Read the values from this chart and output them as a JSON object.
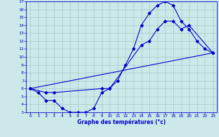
{
  "xlabel": "Graphe des températures (°c)",
  "background_color": "#cce8e8",
  "grid_color": "#aacece",
  "line_color": "#0000cc",
  "xlim": [
    -0.5,
    23.5
  ],
  "ylim": [
    3,
    17
  ],
  "xticks": [
    0,
    1,
    2,
    3,
    4,
    5,
    6,
    7,
    8,
    9,
    10,
    11,
    12,
    13,
    14,
    15,
    16,
    17,
    18,
    19,
    20,
    21,
    22,
    23
  ],
  "yticks": [
    3,
    4,
    5,
    6,
    7,
    8,
    9,
    10,
    11,
    12,
    13,
    14,
    15,
    16,
    17
  ],
  "curve1_x": [
    0,
    1,
    2,
    3,
    4,
    5,
    6,
    7,
    8,
    9,
    10,
    11,
    12,
    13,
    14,
    15,
    16,
    17,
    18,
    19,
    20,
    21,
    22,
    23
  ],
  "curve1_y": [
    6.0,
    5.5,
    4.5,
    4.5,
    3.5,
    3.0,
    3.0,
    3.0,
    3.5,
    5.5,
    6.0,
    7.0,
    9.0,
    11.0,
    14.0,
    15.5,
    16.5,
    17.0,
    16.5,
    14.5,
    13.5,
    12.0,
    11.0,
    10.5
  ],
  "curve2_x": [
    0,
    2,
    3,
    9,
    10,
    14,
    15,
    16,
    17,
    18,
    19,
    20,
    23
  ],
  "curve2_y": [
    6.0,
    5.5,
    5.5,
    6.0,
    6.0,
    11.5,
    12.0,
    13.5,
    14.5,
    14.5,
    13.5,
    14.0,
    10.5
  ],
  "curve3_x": [
    0,
    23
  ],
  "curve3_y": [
    6.0,
    10.5
  ]
}
